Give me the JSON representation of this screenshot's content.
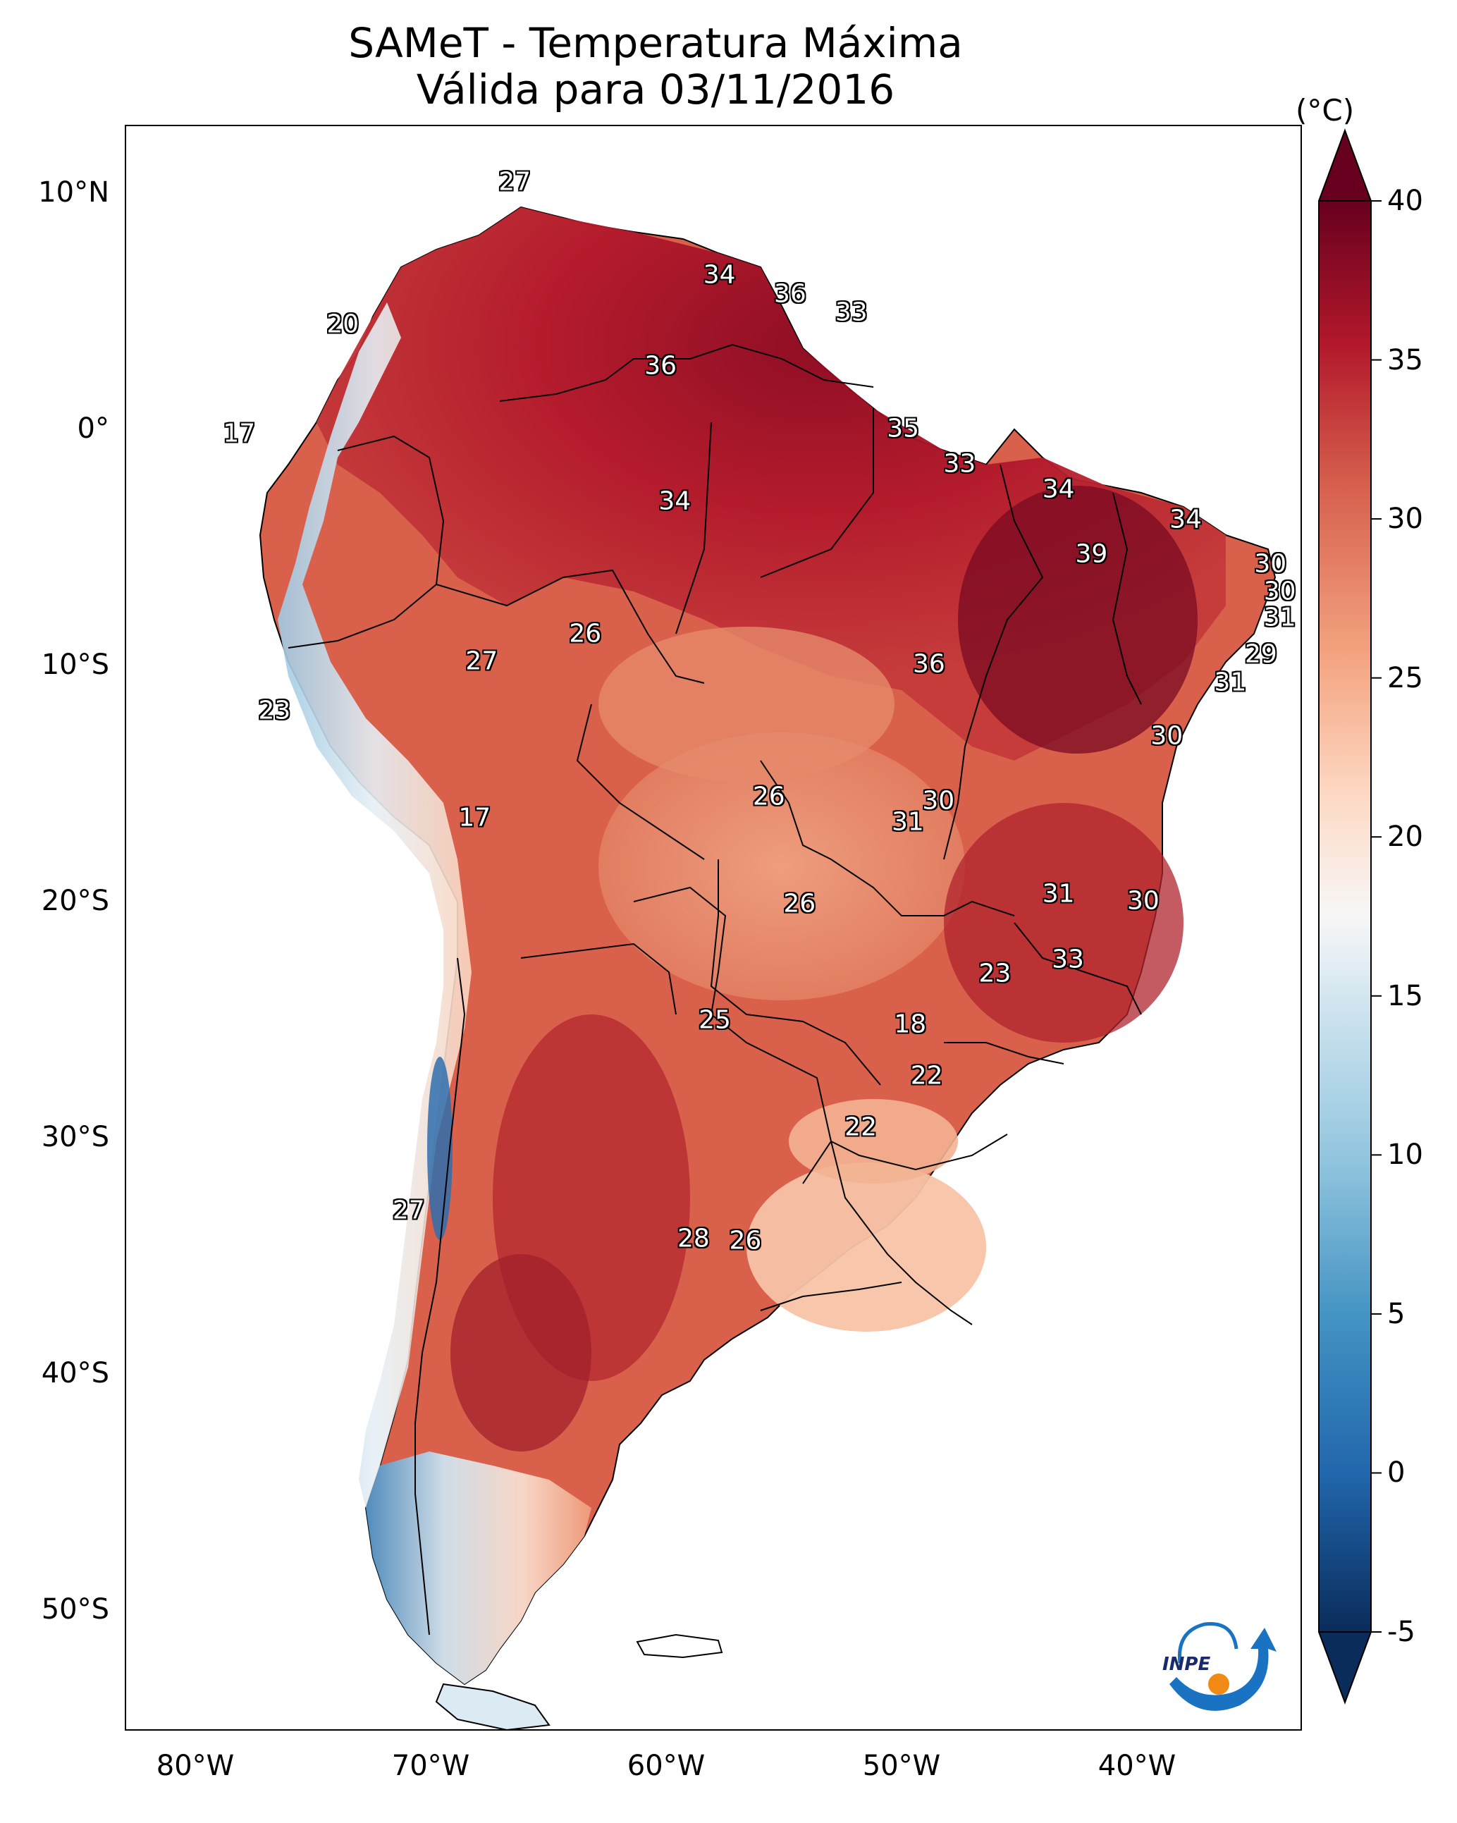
{
  "title": {
    "line1": "SAMeT - Temperatura Máxima",
    "line2": "Válida para 03/11/2016"
  },
  "map": {
    "lat_ticks": [
      "10°N",
      "0°",
      "10°S",
      "20°S",
      "30°S",
      "40°S",
      "50°S"
    ],
    "lon_ticks": [
      "80°W",
      "70°W",
      "60°W",
      "50°W",
      "40°W"
    ],
    "extent": {
      "lon_min": -83,
      "lon_max": -33,
      "lat_min": -56,
      "lat_max": 13
    },
    "labels": [
      {
        "text": "27",
        "lon": -66.5,
        "lat": 10.6
      },
      {
        "text": "20",
        "lon": -73.8,
        "lat": 4.5
      },
      {
        "text": "17",
        "lon": -78.2,
        "lat": -0.2
      },
      {
        "text": "34",
        "lon": -57.8,
        "lat": 6.6
      },
      {
        "text": "36",
        "lon": -54.8,
        "lat": 5.8
      },
      {
        "text": "33",
        "lon": -52.2,
        "lat": 5.0
      },
      {
        "text": "36",
        "lon": -60.3,
        "lat": 2.7
      },
      {
        "text": "35",
        "lon": -50.0,
        "lat": 0.0
      },
      {
        "text": "33",
        "lon": -47.6,
        "lat": -1.5
      },
      {
        "text": "34",
        "lon": -43.4,
        "lat": -2.6
      },
      {
        "text": "34",
        "lon": -59.7,
        "lat": -3.1
      },
      {
        "text": "34",
        "lon": -38.0,
        "lat": -3.9
      },
      {
        "text": "39",
        "lon": -42.0,
        "lat": -5.4
      },
      {
        "text": "30",
        "lon": -34.4,
        "lat": -5.8
      },
      {
        "text": "30",
        "lon": -34.0,
        "lat": -7.0
      },
      {
        "text": "31",
        "lon": -34.0,
        "lat": -8.1
      },
      {
        "text": "29",
        "lon": -34.8,
        "lat": -9.7
      },
      {
        "text": "31",
        "lon": -36.1,
        "lat": -10.9
      },
      {
        "text": "30",
        "lon": -38.8,
        "lat": -13.2
      },
      {
        "text": "26",
        "lon": -63.5,
        "lat": -8.8
      },
      {
        "text": "27",
        "lon": -67.9,
        "lat": -10.0
      },
      {
        "text": "36",
        "lon": -48.9,
        "lat": -10.1
      },
      {
        "text": "23",
        "lon": -76.7,
        "lat": -12.1
      },
      {
        "text": "17",
        "lon": -68.2,
        "lat": -16.7
      },
      {
        "text": "26",
        "lon": -55.7,
        "lat": -15.8
      },
      {
        "text": "30",
        "lon": -48.5,
        "lat": -16.0
      },
      {
        "text": "31",
        "lon": -49.8,
        "lat": -16.9
      },
      {
        "text": "31",
        "lon": -43.4,
        "lat": -20.0
      },
      {
        "text": "30",
        "lon": -39.8,
        "lat": -20.3
      },
      {
        "text": "26",
        "lon": -54.4,
        "lat": -20.4
      },
      {
        "text": "33",
        "lon": -43.0,
        "lat": -22.8
      },
      {
        "text": "23",
        "lon": -46.1,
        "lat": -23.4
      },
      {
        "text": "25",
        "lon": -58.0,
        "lat": -25.4
      },
      {
        "text": "18",
        "lon": -49.7,
        "lat": -25.6
      },
      {
        "text": "22",
        "lon": -49.0,
        "lat": -27.8
      },
      {
        "text": "22",
        "lon": -51.8,
        "lat": -30.0
      },
      {
        "text": "27",
        "lon": -71.0,
        "lat": -33.6
      },
      {
        "text": "28",
        "lon": -58.9,
        "lat": -34.8
      },
      {
        "text": "26",
        "lon": -56.7,
        "lat": -34.9
      }
    ]
  },
  "colorbar": {
    "unit": "(°C)",
    "ticks": [
      "40",
      "35",
      "30",
      "25",
      "20",
      "15",
      "10",
      "5",
      "0",
      "-5"
    ],
    "range": [
      -5,
      40
    ],
    "colors": [
      "#0a2c5a",
      "#2166ac",
      "#4393c3",
      "#92c5de",
      "#d1e5f0",
      "#f7f7f7",
      "#fddbc7",
      "#f4a582",
      "#d6604d",
      "#b2182b",
      "#67001f"
    ]
  },
  "logo": {
    "text": "INPE"
  }
}
